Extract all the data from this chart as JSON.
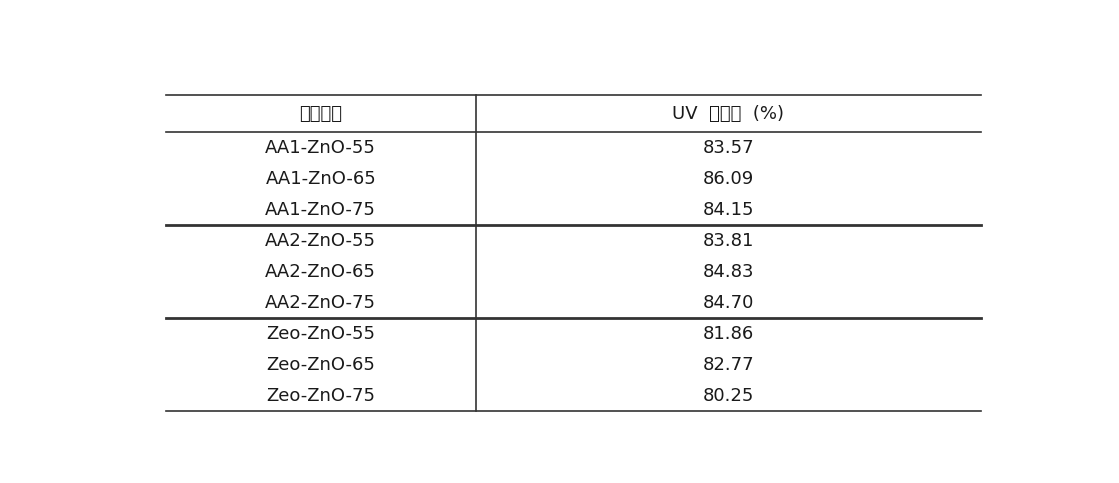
{
  "col1_header": "시트종류",
  "col2_header": "UV  차단율  (%)",
  "rows": [
    [
      "AA1-ZnO-55",
      "83.57"
    ],
    [
      "AA1-ZnO-65",
      "86.09"
    ],
    [
      "AA1-ZnO-75",
      "84.15"
    ],
    [
      "AA2-ZnO-55",
      "83.81"
    ],
    [
      "AA2-ZnO-65",
      "84.83"
    ],
    [
      "AA2-ZnO-75",
      "84.70"
    ],
    [
      "Zeo-ZnO-55",
      "81.86"
    ],
    [
      "Zeo-ZnO-65",
      "82.77"
    ],
    [
      "Zeo-ZnO-75",
      "80.25"
    ]
  ],
  "group_dividers": [
    3,
    6
  ],
  "bg_color": "#ffffff",
  "text_color": "#1a1a1a",
  "line_color": "#333333",
  "font_size": 13,
  "header_font_size": 13
}
